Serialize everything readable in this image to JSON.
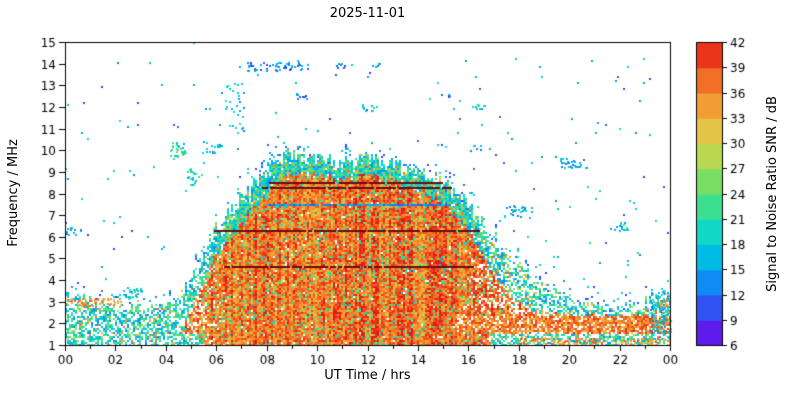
{
  "chart_data": {
    "type": "heatmap",
    "title": "2025-11-01",
    "xlabel": "UT Time / hrs",
    "ylabel": "Frequency / MHz",
    "xlim": [
      0,
      24
    ],
    "ylim": [
      1,
      15
    ],
    "x_tick_values": [
      0,
      2,
      4,
      6,
      8,
      10,
      12,
      14,
      16,
      18,
      20,
      22,
      24
    ],
    "x_tick_labels": [
      "00",
      "02",
      "04",
      "06",
      "08",
      "10",
      "12",
      "14",
      "16",
      "18",
      "20",
      "22",
      "00"
    ],
    "y_tick_values": [
      1,
      2,
      3,
      4,
      5,
      6,
      7,
      8,
      9,
      10,
      11,
      12,
      13,
      14,
      15
    ],
    "colorbar": {
      "label": "Signal to Noise Ratio SNR / dB",
      "tick_values": [
        6,
        9,
        12,
        15,
        18,
        21,
        24,
        27,
        30,
        33,
        36,
        39,
        42
      ],
      "range": [
        6,
        42
      ],
      "stop_colors": [
        "#7a00e8",
        "#4333f0",
        "#1e6ef5",
        "#00a8f0",
        "#00d0d8",
        "#20e0b0",
        "#58dd70",
        "#9ade57",
        "#d8d44f",
        "#f0b63c",
        "#f5862b",
        "#ef531f",
        "#e61717"
      ]
    },
    "hours": [
      0,
      1,
      2,
      3,
      4,
      5,
      6,
      7,
      8,
      9,
      10,
      11,
      12,
      13,
      14,
      15,
      16,
      17,
      18,
      19,
      20,
      21,
      22,
      23,
      24
    ],
    "envelope_mhz": [
      3.3,
      3.0,
      2.9,
      2.7,
      2.7,
      4.0,
      6.4,
      7.8,
      9.0,
      9.9,
      9.6,
      9.4,
      9.6,
      9.3,
      9.0,
      8.5,
      7.4,
      6.0,
      4.7,
      3.8,
      3.2,
      2.8,
      2.6,
      2.9,
      3.4
    ],
    "red_core_top_mhz": [
      0,
      0,
      0,
      0,
      0,
      2.6,
      5.2,
      6.6,
      7.9,
      9.0,
      8.8,
      8.6,
      8.8,
      8.5,
      8.2,
      7.6,
      6.2,
      4.4,
      2.9,
      2.5,
      2.4,
      2.3,
      2.3,
      2.4,
      2.6
    ],
    "evening_band": {
      "h1": 15.4,
      "h2": 24,
      "f1": 1.6,
      "f2": 2.35
    },
    "interference_lines": [
      {
        "f": 4.65,
        "h1": 6.3,
        "h2": 16.2,
        "style": "dark"
      },
      {
        "f": 6.3,
        "h1": 5.9,
        "h2": 16.4,
        "style": "dark"
      },
      {
        "f": 7.5,
        "h1": 8.0,
        "h2": 15.2,
        "style": "blue"
      },
      {
        "f": 8.3,
        "h1": 7.8,
        "h2": 15.3,
        "style": "dark"
      },
      {
        "f": 8.55,
        "h1": 8.1,
        "h2": 15.0,
        "style": "dark"
      }
    ],
    "scatter_blobs": [
      {
        "h1": 0.0,
        "h2": 0.6,
        "f1": 6.1,
        "f2": 6.45,
        "p": 0.45,
        "v1": 12,
        "v2": 20
      },
      {
        "h1": 0.0,
        "h2": 2.2,
        "f1": 2.85,
        "f2": 3.2,
        "p": 0.5,
        "v1": 30,
        "v2": 40
      },
      {
        "h1": 2.3,
        "h2": 3.1,
        "f1": 3.1,
        "f2": 3.7,
        "p": 0.45,
        "v1": 15,
        "v2": 24
      },
      {
        "h1": 4.1,
        "h2": 4.8,
        "f1": 9.6,
        "f2": 10.4,
        "p": 0.45,
        "v1": 15,
        "v2": 27
      },
      {
        "h1": 4.8,
        "h2": 5.4,
        "f1": 8.4,
        "f2": 9.2,
        "p": 0.35,
        "v1": 15,
        "v2": 24
      },
      {
        "h1": 5.4,
        "h2": 6.2,
        "f1": 9.9,
        "f2": 10.45,
        "p": 0.3,
        "v1": 12,
        "v2": 21
      },
      {
        "h1": 6.2,
        "h2": 7.1,
        "f1": 10.8,
        "f2": 13.3,
        "p": 0.1,
        "v1": 12,
        "v2": 21
      },
      {
        "h1": 7.2,
        "h2": 9.6,
        "f1": 13.7,
        "f2": 14.1,
        "p": 0.4,
        "v1": 9,
        "v2": 18
      },
      {
        "h1": 9.0,
        "h2": 9.6,
        "f1": 12.4,
        "f2": 12.65,
        "p": 0.45,
        "v1": 9,
        "v2": 16
      },
      {
        "h1": 10.4,
        "h2": 11.1,
        "f1": 13.8,
        "f2": 14.05,
        "p": 0.35,
        "v1": 9,
        "v2": 18
      },
      {
        "h1": 11.7,
        "h2": 12.4,
        "f1": 11.85,
        "f2": 12.15,
        "p": 0.4,
        "v1": 12,
        "v2": 20
      },
      {
        "h1": 12.1,
        "h2": 12.5,
        "f1": 13.85,
        "f2": 14.1,
        "p": 0.35,
        "v1": 9,
        "v2": 16
      },
      {
        "h1": 14.9,
        "h2": 15.3,
        "f1": 12.4,
        "f2": 12.65,
        "p": 0.3,
        "v1": 9,
        "v2": 16
      },
      {
        "h1": 16.1,
        "h2": 16.7,
        "f1": 11.9,
        "f2": 12.2,
        "p": 0.35,
        "v1": 14,
        "v2": 22
      },
      {
        "h1": 16.0,
        "h2": 16.5,
        "f1": 10.0,
        "f2": 10.35,
        "p": 0.3,
        "v1": 12,
        "v2": 20
      },
      {
        "h1": 17.4,
        "h2": 18.5,
        "f1": 6.9,
        "f2": 7.5,
        "p": 0.3,
        "v1": 12,
        "v2": 20
      },
      {
        "h1": 19.6,
        "h2": 20.7,
        "f1": 9.2,
        "f2": 9.65,
        "p": 0.45,
        "v1": 12,
        "v2": 20
      },
      {
        "h1": 21.4,
        "h2": 22.3,
        "f1": 6.3,
        "f2": 6.7,
        "p": 0.35,
        "v1": 14,
        "v2": 22
      },
      {
        "h1": 18.0,
        "h2": 24.0,
        "f1": 1.05,
        "f2": 1.35,
        "p": 0.5,
        "v1": 30,
        "v2": 40
      },
      {
        "h1": 23.2,
        "h2": 24.0,
        "f1": 1.3,
        "f2": 3.6,
        "p": 0.45,
        "v1": 12,
        "v2": 24
      },
      {
        "h1": 23.5,
        "h2": 24.0,
        "f1": 2.8,
        "f2": 3.2,
        "p": 0.5,
        "v1": 30,
        "v2": 40
      }
    ],
    "seed": 20251101
  }
}
